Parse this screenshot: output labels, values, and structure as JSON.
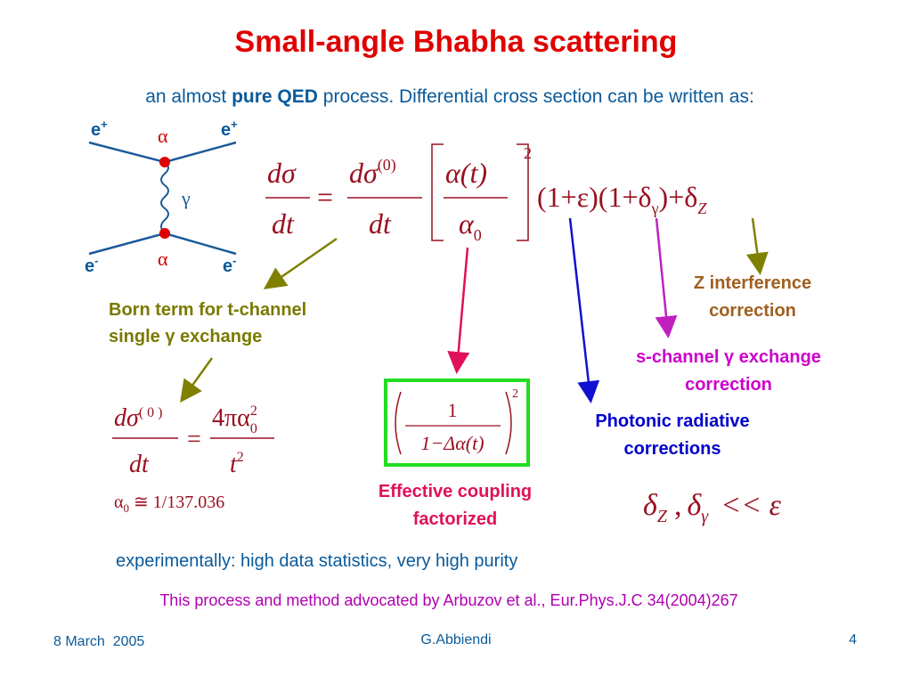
{
  "title": "Small-angle Bhabha scattering",
  "intro": {
    "before": "an almost",
    "bold": "pure QED",
    "after": "process. Differential cross section can be written as:"
  },
  "diagram": {
    "top_left": {
      "base": "e",
      "sup": "+"
    },
    "top_right": {
      "base": "e",
      "sup": "+"
    },
    "bottom_left": {
      "base": "e",
      "sup": "-"
    },
    "bottom_right": {
      "base": "e",
      "sup": "-"
    },
    "top_coupling": "α",
    "bottom_coupling": "α",
    "propagator": "γ"
  },
  "main_equation": {
    "lhs_num": "dσ",
    "lhs_den": "dt",
    "eq": "=",
    "num": "dσ",
    "num_sup": "(0)",
    "den": "dt",
    "ratio_num": "α(t)",
    "ratio_den": "α",
    "ratio_den_sub": "0",
    "power": "2",
    "factor1": "(1+ε)",
    "factor2": "(1+δ",
    "factor2_sub": "γ",
    "factor2_end": ")",
    "plus": "+δ",
    "plus_sub": "Z"
  },
  "annotations": {
    "born": [
      "Born term for t-channel",
      "single γ exchange"
    ],
    "z_interference": [
      "Z interference",
      "correction"
    ],
    "s_channel": [
      "s-channel γ exchange",
      "correction"
    ],
    "photonic": [
      "Photonic radiative",
      "corrections"
    ],
    "effective": [
      "Effective coupling",
      "factorized"
    ]
  },
  "born_equation": {
    "num": "dσ",
    "num_sup": "( 0 )",
    "den": "dt",
    "eq": "=",
    "rhs_num": "4πα",
    "rhs_sup": "2",
    "rhs_sub": "0",
    "rhs_den": "t",
    "rhs_den_sup": "2"
  },
  "alpha0": {
    "symbol": "α",
    "sub": "0",
    "value": "≅ 1/137.036"
  },
  "coupling_box": {
    "num": "1",
    "den": "1−Δα(t)",
    "power": "2"
  },
  "inequality": {
    "d1": "δ",
    "d1_sub": "Z",
    "sep": ",",
    "d2": "δ",
    "d2_sub": "γ",
    "rel": "<< ε"
  },
  "experimental": "experimentally: high data statistics, very high purity",
  "citation": "This process and method advocated by Arbuzov et al., Eur.Phys.J.C 34(2004)267",
  "footer": {
    "date": "8 March  2005",
    "author": "G.Abbiendi",
    "page": "4"
  }
}
